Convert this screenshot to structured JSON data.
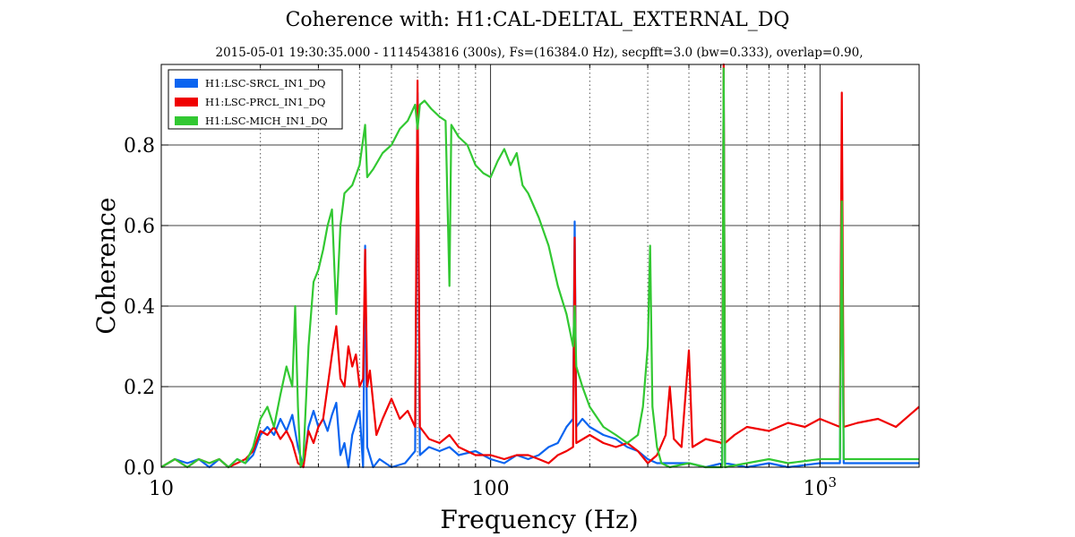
{
  "chart_data": {
    "type": "line",
    "title": "Coherence with: H1:CAL-DELTAL_EXTERNAL_DQ",
    "subtitle": "2015-05-01 19:30:35.000 - 1114543816 (300s), Fs=(16384.0 Hz), secpfft=3.0 (bw=0.333), overlap=0.90,",
    "xlabel": "Frequency (Hz)",
    "ylabel": "Coherence",
    "xscale": "log",
    "xlim": [
      10,
      2000
    ],
    "ylim": [
      0,
      1.0
    ],
    "x_ticks": [
      {
        "value": 10,
        "label": "10",
        "sup": ""
      },
      {
        "value": 100,
        "label": "100",
        "sup": ""
      },
      {
        "value": 1000,
        "label": "10",
        "sup": "3"
      }
    ],
    "y_ticks": [
      {
        "value": 0.0,
        "label": "0.0"
      },
      {
        "value": 0.2,
        "label": "0.2"
      },
      {
        "value": 0.4,
        "label": "0.4"
      },
      {
        "value": 0.6,
        "label": "0.6"
      },
      {
        "value": 0.8,
        "label": "0.8"
      }
    ],
    "grid": {
      "major": "solid",
      "minor_x": "dotted"
    },
    "legend_position": "top-left",
    "series": [
      {
        "name": "H1:LSC-SRCL_IN1_DQ",
        "color": "#0a64f0",
        "points": [
          [
            10,
            0.0
          ],
          [
            11,
            0.02
          ],
          [
            12,
            0.01
          ],
          [
            13,
            0.02
          ],
          [
            14,
            0.0
          ],
          [
            15,
            0.02
          ],
          [
            16,
            0.0
          ],
          [
            17,
            0.02
          ],
          [
            18,
            0.01
          ],
          [
            19,
            0.03
          ],
          [
            20,
            0.08
          ],
          [
            21,
            0.1
          ],
          [
            22,
            0.08
          ],
          [
            23,
            0.12
          ],
          [
            24,
            0.09
          ],
          [
            25,
            0.13
          ],
          [
            26,
            0.05
          ],
          [
            27,
            0.0
          ],
          [
            28,
            0.1
          ],
          [
            29,
            0.14
          ],
          [
            30,
            0.1
          ],
          [
            31,
            0.12
          ],
          [
            32,
            0.09
          ],
          [
            33,
            0.13
          ],
          [
            34,
            0.16
          ],
          [
            35,
            0.03
          ],
          [
            36,
            0.06
          ],
          [
            37,
            0.0
          ],
          [
            38,
            0.08
          ],
          [
            40,
            0.14
          ],
          [
            41,
            0.0
          ],
          [
            41.6,
            0.55
          ],
          [
            42.2,
            0.05
          ],
          [
            44,
            0.0
          ],
          [
            46,
            0.02
          ],
          [
            50,
            0.0
          ],
          [
            55,
            0.01
          ],
          [
            59,
            0.04
          ],
          [
            60,
            0.93
          ],
          [
            61,
            0.03
          ],
          [
            65,
            0.05
          ],
          [
            70,
            0.04
          ],
          [
            75,
            0.05
          ],
          [
            80,
            0.03
          ],
          [
            90,
            0.04
          ],
          [
            100,
            0.02
          ],
          [
            110,
            0.01
          ],
          [
            120,
            0.03
          ],
          [
            130,
            0.02
          ],
          [
            140,
            0.03
          ],
          [
            150,
            0.05
          ],
          [
            160,
            0.06
          ],
          [
            170,
            0.1
          ],
          [
            178,
            0.12
          ],
          [
            180,
            0.61
          ],
          [
            182,
            0.1
          ],
          [
            190,
            0.12
          ],
          [
            200,
            0.1
          ],
          [
            220,
            0.08
          ],
          [
            240,
            0.07
          ],
          [
            260,
            0.05
          ],
          [
            280,
            0.04
          ],
          [
            300,
            0.02
          ],
          [
            320,
            0.01
          ],
          [
            350,
            0.01
          ],
          [
            400,
            0.01
          ],
          [
            450,
            0.0
          ],
          [
            505,
            0.01
          ],
          [
            510,
            0.99
          ],
          [
            515,
            0.01
          ],
          [
            600,
            0.0
          ],
          [
            700,
            0.01
          ],
          [
            800,
            0.0
          ],
          [
            1000,
            0.01
          ],
          [
            1150,
            0.01
          ],
          [
            1165,
            0.66
          ],
          [
            1180,
            0.01
          ],
          [
            1500,
            0.01
          ],
          [
            2000,
            0.01
          ]
        ]
      },
      {
        "name": "H1:LSC-PRCL_IN1_DQ",
        "color": "#f00000",
        "points": [
          [
            10,
            0.0
          ],
          [
            11,
            0.02
          ],
          [
            12,
            0.0
          ],
          [
            13,
            0.02
          ],
          [
            14,
            0.01
          ],
          [
            15,
            0.02
          ],
          [
            16,
            0.0
          ],
          [
            17,
            0.01
          ],
          [
            18,
            0.02
          ],
          [
            19,
            0.04
          ],
          [
            20,
            0.09
          ],
          [
            21,
            0.08
          ],
          [
            22,
            0.1
          ],
          [
            23,
            0.07
          ],
          [
            24,
            0.09
          ],
          [
            25,
            0.06
          ],
          [
            26,
            0.01
          ],
          [
            27,
            0.0
          ],
          [
            28,
            0.09
          ],
          [
            29,
            0.06
          ],
          [
            30,
            0.1
          ],
          [
            31,
            0.12
          ],
          [
            32,
            0.2
          ],
          [
            33,
            0.28
          ],
          [
            34,
            0.35
          ],
          [
            35,
            0.22
          ],
          [
            36,
            0.2
          ],
          [
            37,
            0.3
          ],
          [
            38,
            0.25
          ],
          [
            39,
            0.28
          ],
          [
            40,
            0.2
          ],
          [
            41,
            0.22
          ],
          [
            41.6,
            0.54
          ],
          [
            42.2,
            0.2
          ],
          [
            43,
            0.24
          ],
          [
            45,
            0.08
          ],
          [
            47,
            0.12
          ],
          [
            50,
            0.17
          ],
          [
            53,
            0.12
          ],
          [
            56,
            0.14
          ],
          [
            59,
            0.1
          ],
          [
            60,
            0.96
          ],
          [
            61,
            0.1
          ],
          [
            65,
            0.07
          ],
          [
            70,
            0.06
          ],
          [
            75,
            0.08
          ],
          [
            80,
            0.05
          ],
          [
            90,
            0.03
          ],
          [
            100,
            0.03
          ],
          [
            110,
            0.02
          ],
          [
            120,
            0.03
          ],
          [
            130,
            0.03
          ],
          [
            140,
            0.02
          ],
          [
            150,
            0.01
          ],
          [
            160,
            0.03
          ],
          [
            170,
            0.04
          ],
          [
            178,
            0.05
          ],
          [
            180,
            0.57
          ],
          [
            182,
            0.06
          ],
          [
            200,
            0.08
          ],
          [
            220,
            0.06
          ],
          [
            240,
            0.05
          ],
          [
            260,
            0.06
          ],
          [
            280,
            0.04
          ],
          [
            300,
            0.01
          ],
          [
            320,
            0.03
          ],
          [
            340,
            0.08
          ],
          [
            350,
            0.2
          ],
          [
            360,
            0.07
          ],
          [
            380,
            0.05
          ],
          [
            400,
            0.29
          ],
          [
            410,
            0.05
          ],
          [
            450,
            0.07
          ],
          [
            505,
            0.06
          ],
          [
            510,
            1.0
          ],
          [
            515,
            0.06
          ],
          [
            550,
            0.08
          ],
          [
            600,
            0.1
          ],
          [
            700,
            0.09
          ],
          [
            800,
            0.11
          ],
          [
            900,
            0.1
          ],
          [
            1000,
            0.12
          ],
          [
            1150,
            0.1
          ],
          [
            1165,
            0.93
          ],
          [
            1180,
            0.1
          ],
          [
            1300,
            0.11
          ],
          [
            1500,
            0.12
          ],
          [
            1700,
            0.1
          ],
          [
            2000,
            0.15
          ]
        ]
      },
      {
        "name": "H1:LSC-MICH_IN1_DQ",
        "color": "#32c832",
        "points": [
          [
            10,
            0.0
          ],
          [
            11,
            0.02
          ],
          [
            12,
            0.0
          ],
          [
            13,
            0.02
          ],
          [
            14,
            0.01
          ],
          [
            15,
            0.02
          ],
          [
            16,
            0.0
          ],
          [
            17,
            0.02
          ],
          [
            18,
            0.01
          ],
          [
            19,
            0.05
          ],
          [
            20,
            0.12
          ],
          [
            21,
            0.15
          ],
          [
            22,
            0.1
          ],
          [
            23,
            0.18
          ],
          [
            24,
            0.25
          ],
          [
            25,
            0.2
          ],
          [
            25.5,
            0.4
          ],
          [
            26,
            0.15
          ],
          [
            26.5,
            0.0
          ],
          [
            27,
            0.02
          ],
          [
            28,
            0.3
          ],
          [
            29,
            0.46
          ],
          [
            30,
            0.49
          ],
          [
            31,
            0.54
          ],
          [
            32,
            0.6
          ],
          [
            33,
            0.64
          ],
          [
            34,
            0.38
          ],
          [
            35,
            0.6
          ],
          [
            36,
            0.68
          ],
          [
            38,
            0.7
          ],
          [
            40,
            0.75
          ],
          [
            41.6,
            0.85
          ],
          [
            42.2,
            0.72
          ],
          [
            44,
            0.74
          ],
          [
            47,
            0.78
          ],
          [
            50,
            0.8
          ],
          [
            53,
            0.84
          ],
          [
            56,
            0.86
          ],
          [
            59,
            0.9
          ],
          [
            60,
            0.84
          ],
          [
            61,
            0.9
          ],
          [
            63,
            0.91
          ],
          [
            66,
            0.89
          ],
          [
            70,
            0.87
          ],
          [
            73,
            0.86
          ],
          [
            75,
            0.45
          ],
          [
            76,
            0.85
          ],
          [
            80,
            0.82
          ],
          [
            85,
            0.8
          ],
          [
            90,
            0.75
          ],
          [
            95,
            0.73
          ],
          [
            100,
            0.72
          ],
          [
            105,
            0.76
          ],
          [
            110,
            0.79
          ],
          [
            115,
            0.75
          ],
          [
            120,
            0.78
          ],
          [
            125,
            0.7
          ],
          [
            130,
            0.68
          ],
          [
            140,
            0.62
          ],
          [
            150,
            0.55
          ],
          [
            160,
            0.45
          ],
          [
            170,
            0.38
          ],
          [
            178,
            0.3
          ],
          [
            180,
            0.4
          ],
          [
            182,
            0.25
          ],
          [
            190,
            0.2
          ],
          [
            200,
            0.15
          ],
          [
            220,
            0.1
          ],
          [
            240,
            0.08
          ],
          [
            260,
            0.06
          ],
          [
            280,
            0.08
          ],
          [
            290,
            0.15
          ],
          [
            300,
            0.3
          ],
          [
            305,
            0.55
          ],
          [
            310,
            0.15
          ],
          [
            320,
            0.05
          ],
          [
            330,
            0.01
          ],
          [
            350,
            0.0
          ],
          [
            400,
            0.01
          ],
          [
            450,
            0.0
          ],
          [
            505,
            0.0
          ],
          [
            510,
            0.99
          ],
          [
            515,
            0.0
          ],
          [
            600,
            0.01
          ],
          [
            700,
            0.02
          ],
          [
            800,
            0.01
          ],
          [
            1000,
            0.02
          ],
          [
            1150,
            0.02
          ],
          [
            1165,
            0.66
          ],
          [
            1180,
            0.02
          ],
          [
            1500,
            0.02
          ],
          [
            2000,
            0.02
          ]
        ]
      }
    ]
  }
}
